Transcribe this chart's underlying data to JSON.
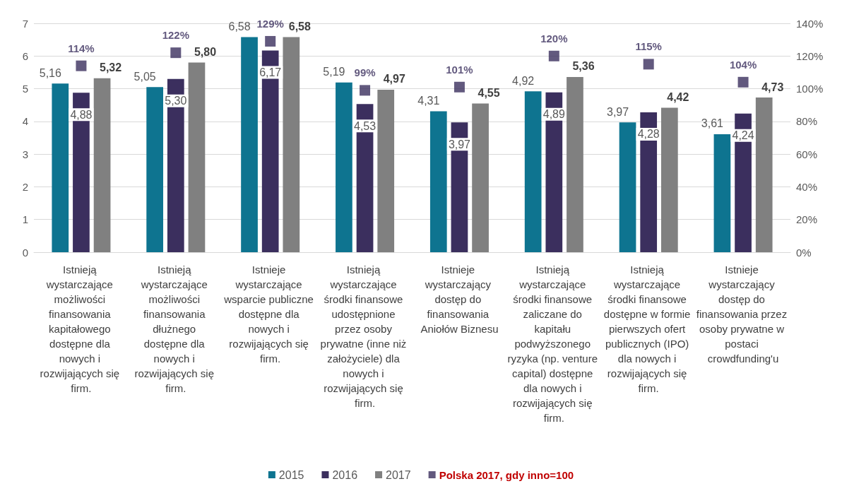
{
  "chart_data": {
    "type": "bar",
    "categories": [
      "Istnieją wystarczające możliwości finansowania kapitałowego dostępne dla nowych i rozwijających się firm.",
      "Istnieją wystarczające możliwości finansowania dłużnego dostępne dla nowych i rozwijających się firm.",
      "Istnieje wystarczające wsparcie publiczne dostępne dla nowych i rozwijających się firm.",
      "Istnieją wystarczające środki finansowe udostępnione przez osoby prywatne (inne niż założyciele) dla nowych i rozwijających się firm.",
      "Istnieje wystarczający dostęp do finansowania Aniołów Biznesu",
      "Istnieją wystarczające środki finansowe zaliczane do kapitału podwyższonego ryzyka (np. venture capital) dostępne dla nowych i rozwijających się firm.",
      "Istnieją wystarczające środki finansowe dostępne w formie pierwszych ofert publicznych (IPO) dla nowych i rozwijających się firm.",
      "Istnieje wystarczający dostęp do finansowania przez osoby prywatne w postaci crowdfunding'u"
    ],
    "series": [
      {
        "name": "2015",
        "color": "#0e7490",
        "values": [
          5.16,
          5.05,
          6.58,
          5.19,
          4.31,
          4.92,
          3.97,
          3.61
        ],
        "value_labels": [
          "5,16",
          "5,05",
          "6,58",
          "5,19",
          "4,31",
          "4,92",
          "3,97",
          "3,61"
        ]
      },
      {
        "name": "2016",
        "color": "#3b2f5e",
        "values": [
          4.88,
          5.3,
          6.17,
          4.53,
          3.97,
          4.89,
          4.28,
          4.24
        ],
        "value_labels": [
          "4,88",
          "5,30",
          "6,17",
          "4,53",
          "3,97",
          "4,89",
          "4,28",
          "4,24"
        ]
      },
      {
        "name": "2017",
        "color": "#808080",
        "values": [
          5.32,
          5.8,
          6.58,
          4.97,
          4.55,
          5.36,
          4.42,
          4.73
        ],
        "value_labels": [
          "5,32",
          "5,80",
          "6,58",
          "4,97",
          "4,55",
          "5,36",
          "4,42",
          "4,73"
        ]
      },
      {
        "name": "Polska 2017, gdy inno=100",
        "type": "scatter",
        "axis": "y2",
        "marker": "square",
        "color": "#3b2f5e",
        "values": [
          114,
          122,
          129,
          99,
          101,
          120,
          115,
          104
        ],
        "value_labels": [
          "114%",
          "122%",
          "129%",
          "99%",
          "101%",
          "120%",
          "115%",
          "104%"
        ]
      }
    ],
    "ylim": [
      0,
      7
    ],
    "yticks": [
      0,
      1,
      2,
      3,
      4,
      5,
      6,
      7
    ],
    "y2lim": [
      0,
      140
    ],
    "y2ticks": [
      {
        "value": 0,
        "label": "0%"
      },
      {
        "value": 20,
        "label": "20%"
      },
      {
        "value": 40,
        "label": "40%"
      },
      {
        "value": 60,
        "label": "60%"
      },
      {
        "value": 80,
        "label": "80%"
      },
      {
        "value": 100,
        "label": "100%"
      },
      {
        "value": 120,
        "label": "120%"
      },
      {
        "value": 140,
        "label": "140%"
      }
    ],
    "grid": "y",
    "legend": "bottom"
  }
}
